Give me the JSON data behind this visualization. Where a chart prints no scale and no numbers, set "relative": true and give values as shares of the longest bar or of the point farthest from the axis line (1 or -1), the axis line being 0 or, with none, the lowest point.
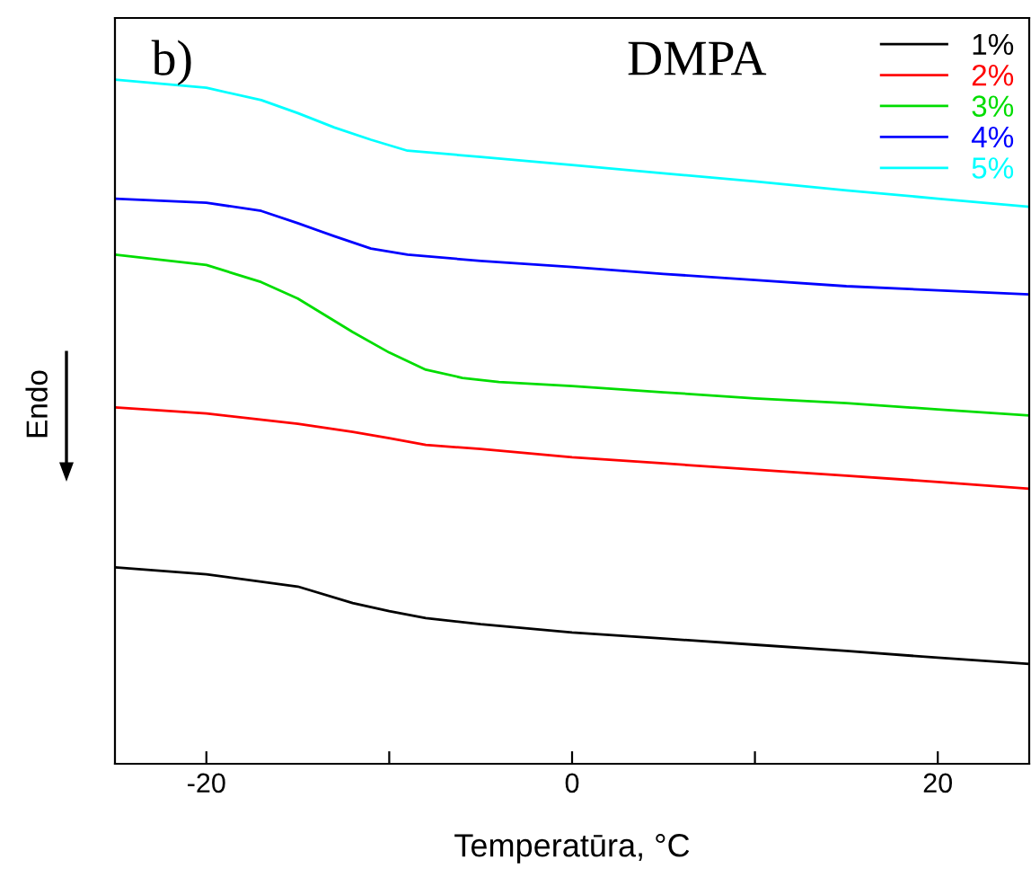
{
  "chart_data": {
    "type": "line",
    "relative": true,
    "xlabel": "Temperatūra, °C",
    "ylabel": "Endo",
    "annotations": [
      "b)",
      "DMPA"
    ],
    "x": [
      -25,
      -20,
      -15,
      -12,
      -10,
      -8,
      -5,
      0,
      5,
      10,
      15,
      20,
      25
    ],
    "xlim": [
      -25,
      25
    ],
    "xticks": [
      -20,
      {
        "value": -10,
        "label": null
      },
      0,
      {
        "value": 10,
        "label": null
      },
      20
    ],
    "tick_labels": "x",
    "legend": "top right",
    "grid": false,
    "series": [
      {
        "name": "1%",
        "color": "#000000",
        "values": [
          0.287,
          0.277,
          0.259,
          0.235,
          0.223,
          0.213,
          0.204,
          0.192,
          0.183,
          0.174,
          0.165,
          0.155,
          0.146
        ]
      },
      {
        "name": "2%",
        "color": "#ff0000",
        "values": [
          0.521,
          0.512,
          0.497,
          0.485,
          0.476,
          0.466,
          0.46,
          0.448,
          0.439,
          0.43,
          0.421,
          0.412,
          0.402
        ]
      },
      {
        "name": "3%",
        "color": "#00dd00",
        "x": [
          -25,
          -20,
          -17,
          -15,
          -12,
          -10,
          -8,
          -6,
          -4,
          0,
          5,
          10,
          15,
          20,
          25
        ],
        "values": [
          0.744,
          0.729,
          0.704,
          0.68,
          0.631,
          0.601,
          0.576,
          0.564,
          0.558,
          0.552,
          0.543,
          0.534,
          0.527,
          0.518,
          0.509
        ]
      },
      {
        "name": "4%",
        "color": "#0000ff",
        "x": [
          -25,
          -20,
          -17,
          -15,
          -13,
          -11,
          -9,
          -5,
          0,
          5,
          10,
          15,
          20,
          25
        ],
        "values": [
          0.826,
          0.82,
          0.808,
          0.79,
          0.771,
          0.753,
          0.744,
          0.735,
          0.726,
          0.716,
          0.707,
          0.698,
          0.692,
          0.686
        ]
      },
      {
        "name": "5%",
        "color": "#00ffff",
        "x": [
          -25,
          -20,
          -17,
          -15,
          -13,
          -11,
          -9,
          -5,
          0,
          5,
          10,
          15,
          20,
          25
        ],
        "values": [
          1.0,
          0.988,
          0.97,
          0.951,
          0.93,
          0.912,
          0.896,
          0.887,
          0.875,
          0.863,
          0.851,
          0.838,
          0.826,
          0.814
        ]
      }
    ]
  }
}
